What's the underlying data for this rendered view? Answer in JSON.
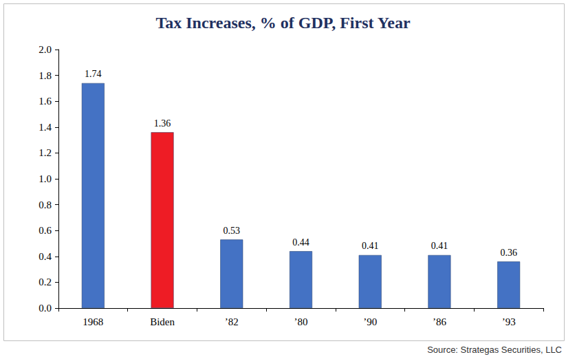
{
  "chart_data": {
    "type": "bar",
    "title": "Tax Increases, % of GDP, First Year",
    "source": "Source: Strategas Securities, LLC",
    "categories": [
      "1968",
      "Biden",
      "’82",
      "’80",
      "’90",
      "’86",
      "’93"
    ],
    "values": [
      1.74,
      1.36,
      0.53,
      0.44,
      0.41,
      0.41,
      0.36
    ],
    "colors": [
      "#4472c4",
      "#ee1c25",
      "#4472c4",
      "#4472c4",
      "#4472c4",
      "#4472c4",
      "#4472c4"
    ],
    "ylim": [
      0,
      2
    ],
    "yticks": [
      {
        "value": 0,
        "label": "0.0"
      },
      0.2,
      0.4,
      0.6,
      0.8,
      {
        "value": 1,
        "label": "1.0"
      },
      1.2,
      1.4,
      1.6,
      1.8,
      {
        "value": 2,
        "label": "2.0"
      }
    ],
    "grid": false,
    "data_labels": true
  }
}
